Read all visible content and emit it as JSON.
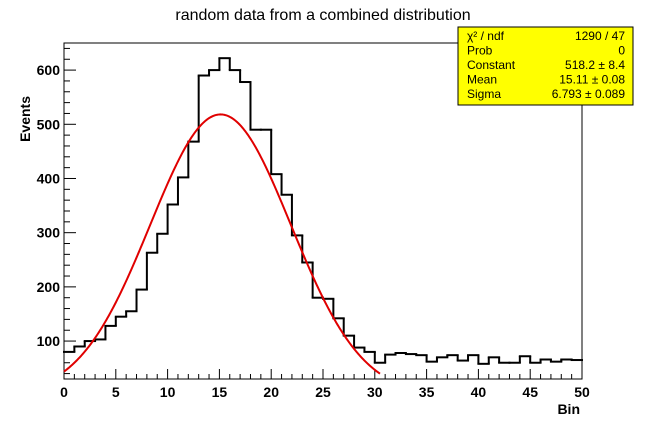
{
  "chart_data": {
    "type": "line",
    "title": "random data from a combined distribution",
    "xlabel": "Bin",
    "ylabel": "Events",
    "xlim": [
      0,
      50
    ],
    "ylim": [
      30,
      650
    ],
    "grid": false,
    "x_ticks": [
      0,
      5,
      10,
      15,
      20,
      25,
      30,
      35,
      40,
      45,
      50
    ],
    "y_ticks": [
      100,
      200,
      300,
      400,
      500,
      600
    ],
    "histogram": {
      "bin_edges_start": 0,
      "bin_width": 1,
      "counts": [
        80,
        90,
        100,
        103,
        128,
        145,
        155,
        195,
        263,
        298,
        352,
        402,
        468,
        590,
        600,
        622,
        600,
        578,
        490,
        490,
        408,
        370,
        295,
        245,
        180,
        178,
        142,
        110,
        88,
        80,
        60,
        75,
        78,
        76,
        74,
        62,
        70,
        74,
        64,
        74,
        58,
        70,
        60,
        60,
        72,
        60,
        66,
        62,
        66,
        65
      ]
    },
    "fit": {
      "name": "gaus",
      "color": "#e00000",
      "constant": 518.2,
      "mean": 15.11,
      "sigma": 6.793,
      "x_range": [
        0,
        30.5
      ]
    },
    "stats_box": {
      "background": "#ffff00",
      "placement": "top-right",
      "rows": [
        {
          "label": "χ² / ndf",
          "value": "1290 / 47"
        },
        {
          "label": "Prob",
          "value": "0"
        },
        {
          "label": "Constant",
          "value": "518.2 ± 8.4"
        },
        {
          "label": "Mean",
          "value": "15.11 ± 0.08"
        },
        {
          "label": "Sigma",
          "value": "6.793 ± 0.089"
        }
      ]
    }
  }
}
